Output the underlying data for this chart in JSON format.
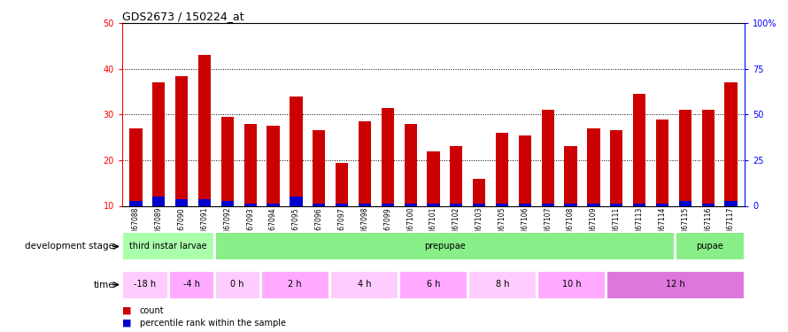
{
  "title": "GDS2673 / 150224_at",
  "samples": [
    "GSM67088",
    "GSM67089",
    "GSM67090",
    "GSM67091",
    "GSM67092",
    "GSM67093",
    "GSM67094",
    "GSM67095",
    "GSM67096",
    "GSM67097",
    "GSM67098",
    "GSM67099",
    "GSM67100",
    "GSM67101",
    "GSM67102",
    "GSM67103",
    "GSM67105",
    "GSM67106",
    "GSM67107",
    "GSM67108",
    "GSM67109",
    "GSM67111",
    "GSM67113",
    "GSM67114",
    "GSM67115",
    "GSM67116",
    "GSM67117"
  ],
  "count_values": [
    27,
    37,
    38.5,
    43,
    29.5,
    28,
    27.5,
    34,
    26.5,
    19.5,
    28.5,
    31.5,
    28,
    22,
    23,
    16,
    26,
    25.5,
    31,
    23,
    27,
    26.5,
    34.5,
    29,
    31,
    31,
    37
  ],
  "percentile_values": [
    11,
    12,
    11.5,
    11.5,
    11,
    10.5,
    10.5,
    12,
    10.5,
    10.5,
    10.5,
    10.5,
    10.5,
    10.5,
    10.5,
    10.5,
    10.5,
    10.5,
    10.5,
    10.5,
    10.5,
    10.5,
    10.5,
    10.5,
    11,
    10.5,
    11
  ],
  "bar_color_red": "#cc0000",
  "bar_color_blue": "#0000cc",
  "ylim_left": [
    10,
    50
  ],
  "ylim_right": [
    0,
    100
  ],
  "yticks_left": [
    10,
    20,
    30,
    40,
    50
  ],
  "yticks_right": [
    0,
    25,
    50,
    75,
    100
  ],
  "ytick_labels_right": [
    "0",
    "25",
    "50",
    "75",
    "100%"
  ],
  "grid_lines": [
    20,
    30,
    40
  ],
  "dev_stages_def": [
    {
      "label": "third instar larvae",
      "start": 0,
      "end": 4,
      "color": "#aaffaa"
    },
    {
      "label": "prepupae",
      "start": 4,
      "end": 24,
      "color": "#88ee88"
    },
    {
      "label": "pupae",
      "start": 24,
      "end": 27,
      "color": "#88ee88"
    }
  ],
  "time_slots_def": [
    {
      "label": "-18 h",
      "start": 0,
      "end": 2,
      "color": "#ffccff"
    },
    {
      "label": "-4 h",
      "start": 2,
      "end": 4,
      "color": "#ffaaff"
    },
    {
      "label": "0 h",
      "start": 4,
      "end": 6,
      "color": "#ffccff"
    },
    {
      "label": "2 h",
      "start": 6,
      "end": 9,
      "color": "#ffaaff"
    },
    {
      "label": "4 h",
      "start": 9,
      "end": 12,
      "color": "#ffccff"
    },
    {
      "label": "6 h",
      "start": 12,
      "end": 15,
      "color": "#ffaaff"
    },
    {
      "label": "8 h",
      "start": 15,
      "end": 18,
      "color": "#ffccff"
    },
    {
      "label": "10 h",
      "start": 18,
      "end": 21,
      "color": "#ffaaff"
    },
    {
      "label": "12 h",
      "start": 21,
      "end": 27,
      "color": "#dd77dd"
    }
  ],
  "legend_count_color": "#cc0000",
  "legend_percentile_color": "#0000cc",
  "xlabel_dev": "development stage",
  "xlabel_time": "time",
  "bar_width": 0.55
}
